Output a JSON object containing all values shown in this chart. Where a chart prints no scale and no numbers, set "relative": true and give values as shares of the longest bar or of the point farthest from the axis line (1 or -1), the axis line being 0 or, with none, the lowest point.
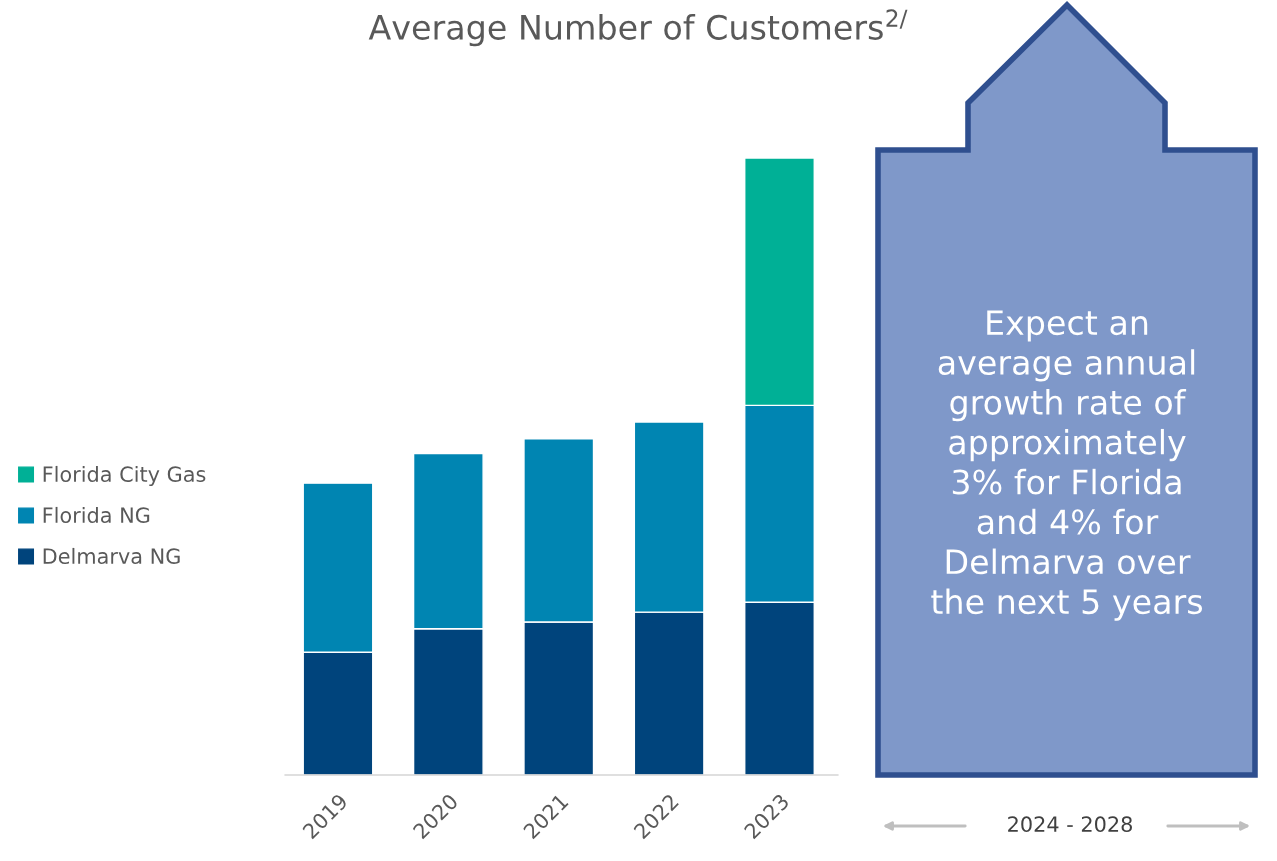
{
  "chart_data": {
    "type": "bar",
    "title": "Average Number of Customers$^{2/}$",
    "categories": [
      "2019",
      "2020",
      "2021",
      "2022",
      "2023"
    ],
    "stacked": true,
    "relative": true,
    "legend": "left",
    "grid": false,
    "series": [
      {
        "name": "Delmarva NG",
        "color": "#00447c",
        "values": [
          0.199,
          0.237,
          0.248,
          0.264,
          0.28
        ]
      },
      {
        "name": "Florida NG",
        "color": "#0085b2",
        "values": [
          0.274,
          0.284,
          0.297,
          0.308,
          0.319
        ]
      },
      {
        "name": "Florida City Gas",
        "color": "#00b096",
        "values": [
          null,
          null,
          null,
          null,
          0.401
        ]
      }
    ],
    "annotations": [
      "Expect an\naverage annual\ngrowth rate of\napproximately\n3% for Florida\nand 4% for\nDelmarva over\nthe next 5 years",
      "2024 - 2028"
    ]
  }
}
